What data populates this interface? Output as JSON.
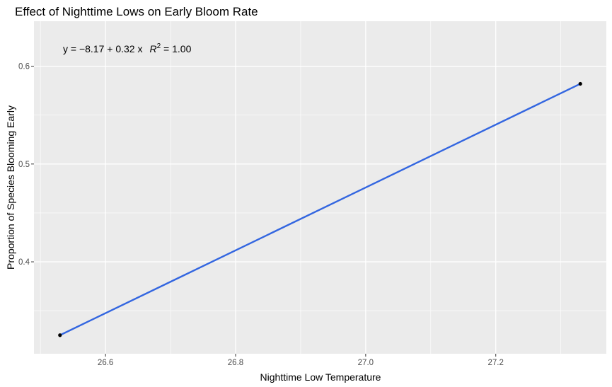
{
  "chart_data": {
    "type": "scatter",
    "title": "Effect of Nighttime Lows on Early Bloom Rate",
    "xlabel": "Nighttime Low Temperature",
    "ylabel": "Proportion of Species Blooming Early",
    "xlim": [
      26.49,
      27.37
    ],
    "ylim": [
      0.306,
      0.646
    ],
    "x_ticks": [
      26.6,
      26.8,
      27.0,
      27.2
    ],
    "x_tick_labels": [
      "26.6",
      "26.8",
      "27.0",
      "27.2"
    ],
    "y_ticks": [
      0.4,
      0.5,
      0.6
    ],
    "y_tick_labels": [
      "0.4",
      "0.5",
      "0.6"
    ],
    "grid": true,
    "points": [
      {
        "x": 26.53,
        "y": 0.325
      },
      {
        "x": 27.33,
        "y": 0.582
      }
    ],
    "fit_line": {
      "intercept": -8.17,
      "slope": 0.32,
      "x_range": [
        26.53,
        27.33
      ]
    },
    "annotation": {
      "prefix": "y = −8.17 + 0.32 x",
      "r_symbol": "R",
      "r_power": "2",
      "r_value": " = 1.00"
    },
    "colors": {
      "panel": "#ebebeb",
      "grid_major": "#ffffff",
      "line": "#3366e0",
      "point": "#000000"
    }
  }
}
